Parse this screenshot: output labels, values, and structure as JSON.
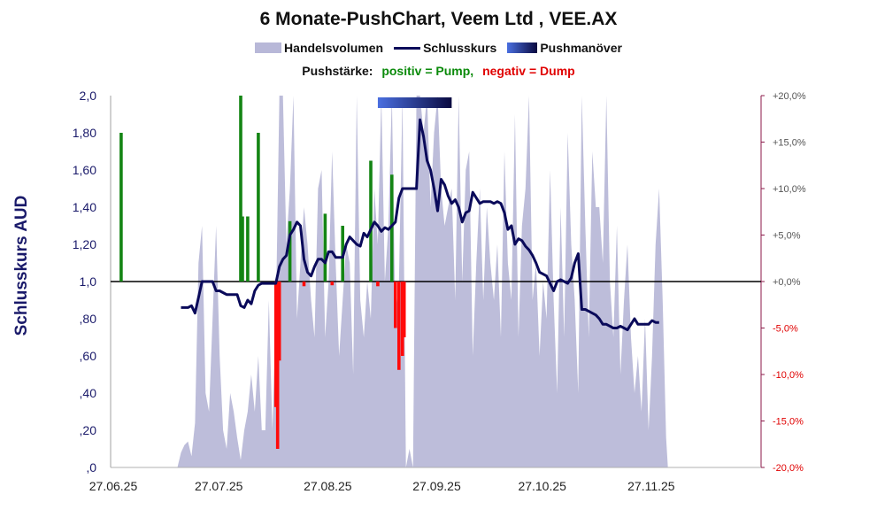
{
  "chart_data": {
    "type": "line",
    "title": "6 Monate-PushChart, Veem Ltd , VEE.AX",
    "legend": [
      {
        "name": "Handelsvolumen",
        "color": "#b8b8d8"
      },
      {
        "name": "Schlusskurs",
        "color": "#0a0a5a"
      },
      {
        "name": "Pushmanöver",
        "color": "#2a3fa0"
      }
    ],
    "strength_label": "Pushstärke:",
    "strength_positive": "positiv = Pump,",
    "strength_negative": "negativ = Dump",
    "ylabel_left": "Schlusskurs AUD",
    "left_axis": {
      "min": 0,
      "max": 2.0,
      "ticks": [
        0,
        0.2,
        0.4,
        0.6,
        0.8,
        1.0,
        1.2,
        1.4,
        1.6,
        1.8,
        2.0
      ],
      "tick_labels": [
        ",0",
        ",20",
        ",40",
        ",60",
        ",80",
        "1,0",
        "1,20",
        "1,40",
        "1,60",
        "1,80",
        "2,0"
      ]
    },
    "right_axis": {
      "min": -20,
      "max": 20,
      "ticks": [
        -20,
        -15,
        -10,
        -5,
        0,
        5,
        10,
        15,
        20
      ],
      "tick_labels": [
        "-20,0%",
        "-15,0%",
        "-10,0%",
        "-5,0%",
        "+0,0%",
        "+5,0%",
        "+10,0%",
        "+15,0%",
        "+20,0%"
      ]
    },
    "x_ticks": [
      "27.06.25",
      "27.07.25",
      "27.08.25",
      "27.09.25",
      "27.10.25",
      "27.11.25"
    ],
    "x_range_days": [
      0,
      185
    ],
    "x_tick_days": [
      0,
      30,
      61,
      92,
      122,
      153
    ],
    "close_price": [
      [
        20,
        0.86
      ],
      [
        22,
        0.86
      ],
      [
        23,
        0.87
      ],
      [
        24,
        0.83
      ],
      [
        26,
        1.0
      ],
      [
        28,
        1.0
      ],
      [
        29,
        1.0
      ],
      [
        30,
        0.95
      ],
      [
        31,
        0.95
      ],
      [
        33,
        0.93
      ],
      [
        35,
        0.93
      ],
      [
        36,
        0.93
      ],
      [
        37,
        0.87
      ],
      [
        38,
        0.86
      ],
      [
        39,
        0.9
      ],
      [
        40,
        0.88
      ],
      [
        41,
        0.95
      ],
      [
        42,
        0.98
      ],
      [
        43,
        0.99
      ],
      [
        44,
        0.99
      ],
      [
        45,
        0.99
      ],
      [
        46,
        0.99
      ],
      [
        47,
        0.99
      ],
      [
        48,
        1.08
      ],
      [
        49,
        1.12
      ],
      [
        50,
        1.14
      ],
      [
        51,
        1.25
      ],
      [
        52,
        1.28
      ],
      [
        53,
        1.32
      ],
      [
        54,
        1.3
      ],
      [
        55,
        1.12
      ],
      [
        56,
        1.05
      ],
      [
        57,
        1.03
      ],
      [
        58,
        1.08
      ],
      [
        59,
        1.12
      ],
      [
        60,
        1.12
      ],
      [
        61,
        1.1
      ],
      [
        62,
        1.16
      ],
      [
        63,
        1.16
      ],
      [
        64,
        1.13
      ],
      [
        65,
        1.13
      ],
      [
        66,
        1.13
      ],
      [
        67,
        1.2
      ],
      [
        68,
        1.24
      ],
      [
        69,
        1.22
      ],
      [
        70,
        1.2
      ],
      [
        71,
        1.19
      ],
      [
        72,
        1.26
      ],
      [
        73,
        1.24
      ],
      [
        74,
        1.28
      ],
      [
        75,
        1.32
      ],
      [
        76,
        1.3
      ],
      [
        77,
        1.27
      ],
      [
        78,
        1.29
      ],
      [
        79,
        1.28
      ],
      [
        80,
        1.3
      ],
      [
        81,
        1.32
      ],
      [
        82,
        1.45
      ],
      [
        83,
        1.5
      ],
      [
        84,
        1.5
      ],
      [
        85,
        1.5
      ],
      [
        86,
        1.5
      ],
      [
        87,
        1.5
      ],
      [
        88,
        1.87
      ],
      [
        89,
        1.78
      ],
      [
        90,
        1.65
      ],
      [
        91,
        1.6
      ],
      [
        92,
        1.5
      ],
      [
        93,
        1.38
      ],
      [
        94,
        1.55
      ],
      [
        95,
        1.52
      ],
      [
        96,
        1.46
      ],
      [
        97,
        1.42
      ],
      [
        98,
        1.44
      ],
      [
        99,
        1.4
      ],
      [
        100,
        1.32
      ],
      [
        101,
        1.37
      ],
      [
        102,
        1.38
      ],
      [
        103,
        1.48
      ],
      [
        104,
        1.45
      ],
      [
        105,
        1.42
      ],
      [
        106,
        1.43
      ],
      [
        107,
        1.43
      ],
      [
        108,
        1.43
      ],
      [
        109,
        1.42
      ],
      [
        110,
        1.43
      ],
      [
        111,
        1.42
      ],
      [
        112,
        1.37
      ],
      [
        113,
        1.28
      ],
      [
        114,
        1.3
      ],
      [
        115,
        1.2
      ],
      [
        116,
        1.23
      ],
      [
        117,
        1.22
      ],
      [
        118,
        1.19
      ],
      [
        119,
        1.17
      ],
      [
        120,
        1.14
      ],
      [
        121,
        1.1
      ],
      [
        122,
        1.05
      ],
      [
        123,
        1.04
      ],
      [
        124,
        1.03
      ],
      [
        125,
        0.99
      ],
      [
        126,
        0.95
      ],
      [
        127,
        1.0
      ],
      [
        128,
        1.01
      ],
      [
        129,
        1.0
      ],
      [
        130,
        0.99
      ],
      [
        131,
        1.02
      ],
      [
        132,
        1.1
      ],
      [
        133,
        1.15
      ],
      [
        134,
        0.85
      ],
      [
        135,
        0.85
      ],
      [
        136,
        0.84
      ],
      [
        137,
        0.83
      ],
      [
        138,
        0.82
      ],
      [
        139,
        0.8
      ],
      [
        140,
        0.77
      ],
      [
        141,
        0.77
      ],
      [
        142,
        0.76
      ],
      [
        143,
        0.75
      ],
      [
        144,
        0.75
      ],
      [
        145,
        0.76
      ],
      [
        146,
        0.75
      ],
      [
        147,
        0.74
      ],
      [
        148,
        0.77
      ],
      [
        149,
        0.8
      ],
      [
        150,
        0.77
      ],
      [
        151,
        0.77
      ],
      [
        152,
        0.77
      ],
      [
        153,
        0.77
      ],
      [
        154,
        0.79
      ],
      [
        155,
        0.78
      ],
      [
        156,
        0.78
      ]
    ],
    "volume_relative": [
      [
        0,
        0
      ],
      [
        19,
        0
      ],
      [
        20,
        0.04
      ],
      [
        21,
        0.06
      ],
      [
        22,
        0.07
      ],
      [
        23,
        0.03
      ],
      [
        24,
        0.12
      ],
      [
        25,
        0.55
      ],
      [
        26,
        0.65
      ],
      [
        27,
        0.2
      ],
      [
        28,
        0.15
      ],
      [
        29,
        0.4
      ],
      [
        30,
        0.65
      ],
      [
        31,
        0.3
      ],
      [
        32,
        0.1
      ],
      [
        33,
        0.05
      ],
      [
        34,
        0.2
      ],
      [
        35,
        0.15
      ],
      [
        36,
        0.08
      ],
      [
        37,
        0.02
      ],
      [
        38,
        0.1
      ],
      [
        39,
        0.15
      ],
      [
        40,
        0.25
      ],
      [
        41,
        0.15
      ],
      [
        42,
        0.3
      ],
      [
        43,
        0.1
      ],
      [
        44,
        0.1
      ],
      [
        45,
        0.45
      ],
      [
        46,
        0.1
      ],
      [
        47,
        0.4
      ],
      [
        48,
        1.0
      ],
      [
        49,
        1.0
      ],
      [
        50,
        0.6
      ],
      [
        51,
        0.75
      ],
      [
        52,
        1.0
      ],
      [
        53,
        0.4
      ],
      [
        54,
        0.55
      ],
      [
        55,
        0.7
      ],
      [
        56,
        0.6
      ],
      [
        57,
        0.45
      ],
      [
        58,
        0.35
      ],
      [
        59,
        0.75
      ],
      [
        60,
        0.8
      ],
      [
        61,
        0.35
      ],
      [
        62,
        0.5
      ],
      [
        63,
        0.85
      ],
      [
        64,
        0.55
      ],
      [
        65,
        0.3
      ],
      [
        66,
        0.45
      ],
      [
        67,
        0.6
      ],
      [
        68,
        0.55
      ],
      [
        69,
        0.25
      ],
      [
        70,
        1.0
      ],
      [
        71,
        0.45
      ],
      [
        72,
        0.35
      ],
      [
        73,
        0.5
      ],
      [
        74,
        0.4
      ],
      [
        75,
        0.75
      ],
      [
        76,
        0.6
      ],
      [
        77,
        1.0
      ],
      [
        78,
        0.5
      ],
      [
        79,
        0.65
      ],
      [
        80,
        1.0
      ],
      [
        81,
        0.4
      ],
      [
        82,
        0.5
      ],
      [
        83,
        1.0
      ],
      [
        84,
        0.0
      ],
      [
        85,
        0.05
      ],
      [
        86,
        0.0
      ],
      [
        87,
        1.0
      ],
      [
        88,
        1.0
      ],
      [
        89,
        0.9
      ],
      [
        90,
        1.0
      ],
      [
        91,
        0.7
      ],
      [
        92,
        0.9
      ],
      [
        93,
        1.0
      ],
      [
        94,
        0.75
      ],
      [
        95,
        0.65
      ],
      [
        96,
        0.7
      ],
      [
        97,
        0.75
      ],
      [
        98,
        0.45
      ],
      [
        99,
        1.0
      ],
      [
        100,
        0.5
      ],
      [
        101,
        0.8
      ],
      [
        102,
        0.85
      ],
      [
        103,
        0.3
      ],
      [
        104,
        0.55
      ],
      [
        105,
        0.75
      ],
      [
        106,
        0.45
      ],
      [
        107,
        0.7
      ],
      [
        108,
        0.55
      ],
      [
        109,
        0.45
      ],
      [
        110,
        0.6
      ],
      [
        111,
        0.35
      ],
      [
        112,
        0.85
      ],
      [
        113,
        0.55
      ],
      [
        114,
        0.45
      ],
      [
        115,
        0.95
      ],
      [
        116,
        0.35
      ],
      [
        117,
        0.65
      ],
      [
        118,
        0.75
      ],
      [
        119,
        1.0
      ],
      [
        120,
        0.45
      ],
      [
        121,
        0.55
      ],
      [
        122,
        0.3
      ],
      [
        123,
        0.5
      ],
      [
        124,
        0.4
      ],
      [
        125,
        0.8
      ],
      [
        126,
        0.45
      ],
      [
        127,
        0.2
      ],
      [
        128,
        0.7
      ],
      [
        129,
        0.35
      ],
      [
        130,
        0.9
      ],
      [
        131,
        0.6
      ],
      [
        132,
        0.45
      ],
      [
        133,
        0.2
      ],
      [
        134,
        1.0
      ],
      [
        135,
        0.65
      ],
      [
        136,
        0.35
      ],
      [
        137,
        0.85
      ],
      [
        138,
        0.7
      ],
      [
        139,
        0.7
      ],
      [
        140,
        0.55
      ],
      [
        141,
        1.0
      ],
      [
        142,
        0.5
      ],
      [
        143,
        0.35
      ],
      [
        144,
        0.65
      ],
      [
        145,
        0.25
      ],
      [
        146,
        0.45
      ],
      [
        147,
        0.6
      ],
      [
        148,
        0.35
      ],
      [
        149,
        0.2
      ],
      [
        150,
        0.3
      ],
      [
        151,
        0.15
      ],
      [
        152,
        0.4
      ],
      [
        153,
        0.1
      ],
      [
        154,
        0.3
      ],
      [
        155,
        0.6
      ],
      [
        156,
        0.75
      ],
      [
        157,
        0.45
      ],
      [
        158,
        0.08
      ],
      [
        158.5,
        0
      ]
    ],
    "push_strength_pct": [
      [
        3,
        16.0
      ],
      [
        37,
        20.0
      ],
      [
        37.5,
        7.0
      ],
      [
        39,
        7.0
      ],
      [
        42,
        16.0
      ],
      [
        47,
        -13.5
      ],
      [
        47.5,
        -18.0
      ],
      [
        48,
        -8.5
      ],
      [
        51,
        6.5
      ],
      [
        55,
        -0.5
      ],
      [
        61,
        7.3
      ],
      [
        63,
        -0.4
      ],
      [
        66,
        6.0
      ],
      [
        74,
        13.0
      ],
      [
        76,
        -0.5
      ],
      [
        80,
        11.5
      ],
      [
        81,
        -5.0
      ],
      [
        82,
        -9.5
      ],
      [
        83,
        -8.0
      ],
      [
        83.5,
        -6.0
      ]
    ],
    "push_maneuver": {
      "start_day": 76,
      "end_day": 97
    }
  }
}
